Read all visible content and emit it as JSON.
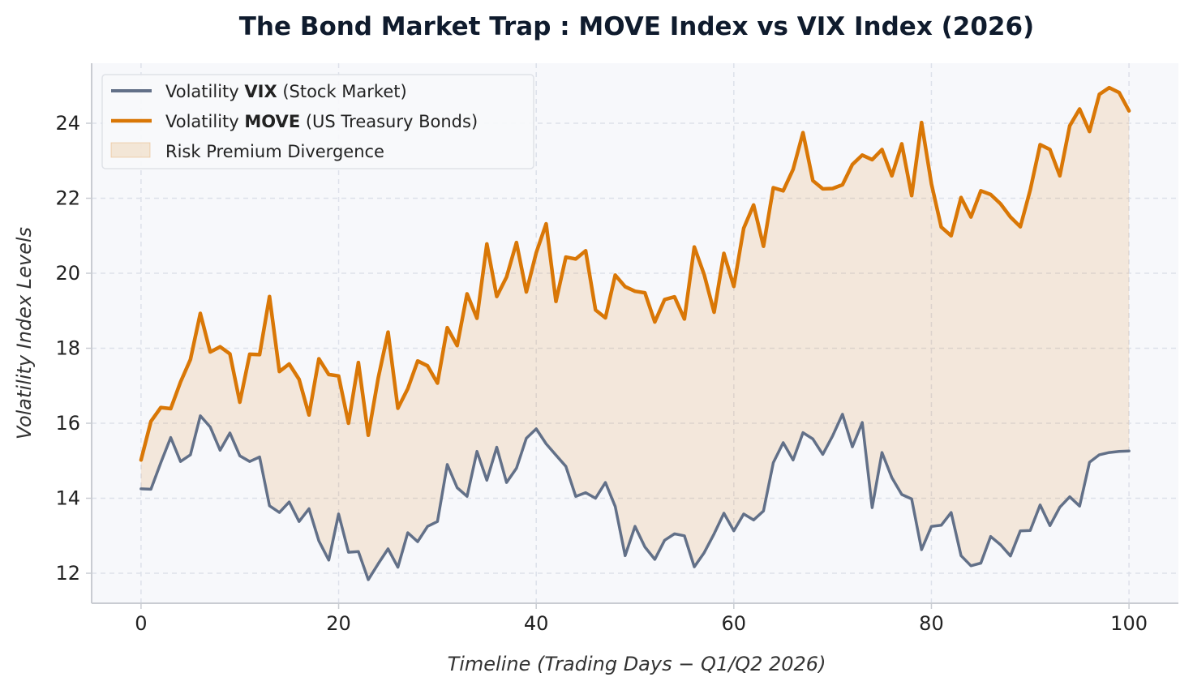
{
  "chart_data": {
    "type": "line",
    "title": "The Bond Market Trap :  MOVE Index vs VIX Index (2026)",
    "xlabel": "Timeline (Trading Days  −  Q1/Q2 2026)",
    "ylabel": "Volatility Index Levels",
    "xlim": [
      -5,
      105
    ],
    "ylim": [
      11.2,
      25.6
    ],
    "xticks": [
      0,
      20,
      40,
      60,
      80,
      100
    ],
    "yticks": [
      12,
      14,
      16,
      18,
      20,
      22,
      24
    ],
    "grid": true,
    "legend_position": "top-left",
    "x": [
      0,
      1,
      2,
      3,
      4,
      5,
      6,
      7,
      8,
      9,
      10,
      11,
      12,
      13,
      14,
      15,
      16,
      17,
      18,
      19,
      20,
      21,
      22,
      23,
      24,
      25,
      26,
      27,
      28,
      29,
      30,
      31,
      32,
      33,
      34,
      35,
      36,
      37,
      38,
      39,
      40,
      41,
      42,
      43,
      44,
      45,
      46,
      47,
      48,
      49,
      50,
      51,
      52,
      53,
      54,
      55,
      56,
      57,
      58,
      59,
      60,
      61,
      62,
      63,
      64,
      65,
      66,
      67,
      68,
      69,
      70,
      71,
      72,
      73,
      74,
      75,
      76,
      77,
      78,
      79,
      80,
      81,
      82,
      83,
      84,
      85,
      86,
      87,
      88,
      89,
      90,
      91,
      92,
      93,
      94,
      95,
      96,
      97,
      98,
      99,
      100
    ],
    "series": [
      {
        "name": "VIX",
        "legend_prefix": "Volatility ",
        "legend_bold": "VIX",
        "legend_suffix": " (Stock Market)",
        "color": "#627088",
        "values": [
          14.25,
          14.24,
          14.95,
          15.62,
          14.98,
          15.16,
          16.2,
          15.9,
          15.28,
          15.74,
          15.13,
          14.98,
          15.1,
          13.8,
          13.62,
          13.9,
          13.38,
          13.72,
          12.86,
          12.35,
          13.58,
          12.56,
          12.58,
          11.83,
          12.25,
          12.65,
          12.16,
          13.08,
          12.84,
          13.25,
          13.38,
          14.9,
          14.28,
          14.05,
          15.25,
          14.48,
          15.36,
          14.42,
          14.8,
          15.6,
          15.85,
          15.45,
          15.15,
          14.85,
          14.05,
          14.15,
          14.0,
          14.42,
          13.78,
          12.47,
          13.25,
          12.7,
          12.37,
          12.88,
          13.05,
          13.0,
          12.17,
          12.55,
          13.05,
          13.6,
          13.13,
          13.58,
          13.42,
          13.66,
          14.95,
          15.48,
          15.02,
          15.75,
          15.58,
          15.17,
          15.66,
          16.24,
          15.37,
          16.02,
          13.75,
          15.22,
          14.55,
          14.1,
          13.98,
          12.63,
          13.25,
          13.28,
          13.62,
          12.47,
          12.2,
          12.27,
          12.98,
          12.76,
          12.46,
          13.13,
          13.14,
          13.82,
          13.27,
          13.76,
          14.04,
          13.79,
          14.96,
          15.16,
          15.22,
          15.25,
          15.26
        ]
      },
      {
        "name": "MOVE",
        "legend_prefix": "Volatility ",
        "legend_bold": "MOVE",
        "legend_suffix": " (US Treasury Bonds)",
        "color": "#d97706",
        "values": [
          15.02,
          16.05,
          16.42,
          16.39,
          17.1,
          17.7,
          18.93,
          17.9,
          18.04,
          17.85,
          16.56,
          17.84,
          17.83,
          19.38,
          17.38,
          17.58,
          17.17,
          16.22,
          17.72,
          17.3,
          17.26,
          16.0,
          17.62,
          15.68,
          17.2,
          18.43,
          16.4,
          16.92,
          17.66,
          17.53,
          17.07,
          18.55,
          18.07,
          19.45,
          18.8,
          20.78,
          19.38,
          19.9,
          20.82,
          19.5,
          20.55,
          21.32,
          19.25,
          20.43,
          20.38,
          20.6,
          19.02,
          18.81,
          19.95,
          19.64,
          19.52,
          19.48,
          18.7,
          19.3,
          19.37,
          18.78,
          20.7,
          19.96,
          18.96,
          20.53,
          19.65,
          21.2,
          21.82,
          20.72,
          22.28,
          22.2,
          22.77,
          23.75,
          22.47,
          22.25,
          22.26,
          22.36,
          22.9,
          23.15,
          23.03,
          23.3,
          22.6,
          23.45,
          22.07,
          24.02,
          22.38,
          21.23,
          21.0,
          22.02,
          21.5,
          22.2,
          22.1,
          21.85,
          21.5,
          21.24,
          22.22,
          23.43,
          23.3,
          22.6,
          23.93,
          24.38,
          23.78,
          24.77,
          24.95,
          24.82,
          24.33
        ]
      }
    ],
    "fill_label": "Risk Premium Divergence",
    "fill_color": "#d97706"
  }
}
